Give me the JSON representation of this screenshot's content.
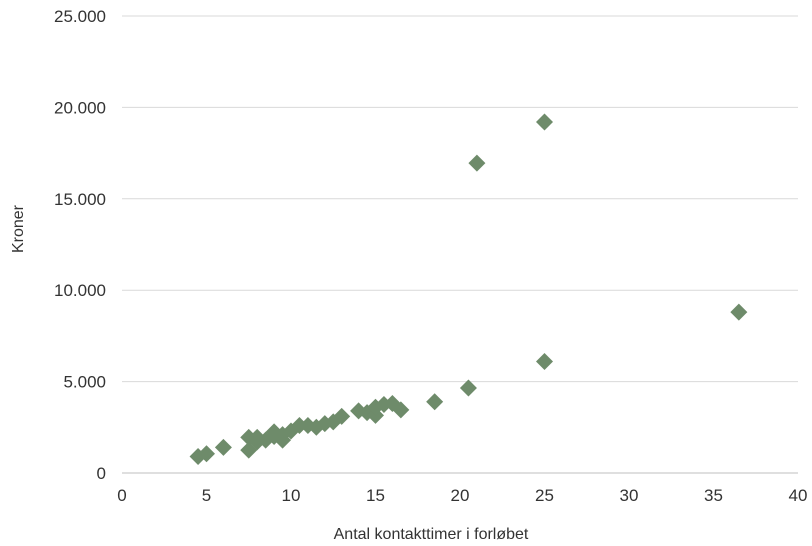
{
  "chart_data": {
    "type": "scatter",
    "xlabel": "Antal kontakttimer i forløbet",
    "ylabel": "Kroner",
    "xlim": [
      0,
      40
    ],
    "ylim": [
      0,
      25000
    ],
    "x_ticks": [
      {
        "value": 0,
        "label": "0"
      },
      {
        "value": 5,
        "label": "5"
      },
      {
        "value": 10,
        "label": "10"
      },
      {
        "value": 15,
        "label": "15"
      },
      {
        "value": 20,
        "label": "20"
      },
      {
        "value": 25,
        "label": "25"
      },
      {
        "value": 30,
        "label": "30"
      },
      {
        "value": 35,
        "label": "35"
      },
      {
        "value": 40,
        "label": "40"
      }
    ],
    "y_ticks": [
      {
        "value": 0,
        "label": "0"
      },
      {
        "value": 5000,
        "label": "5.000"
      },
      {
        "value": 10000,
        "label": "10.000"
      },
      {
        "value": 15000,
        "label": "15.000"
      },
      {
        "value": 20000,
        "label": "20.000"
      },
      {
        "value": 25000,
        "label": "25.000"
      }
    ],
    "grid": true,
    "legend": "none",
    "marker": "diamond",
    "color": "#6e8b6a",
    "points": [
      {
        "x": 4.5,
        "y": 900
      },
      {
        "x": 5.0,
        "y": 1050
      },
      {
        "x": 6.0,
        "y": 1400
      },
      {
        "x": 7.5,
        "y": 1250
      },
      {
        "x": 7.5,
        "y": 1950
      },
      {
        "x": 8.0,
        "y": 1700
      },
      {
        "x": 8.0,
        "y": 1950
      },
      {
        "x": 8.5,
        "y": 1800
      },
      {
        "x": 9.0,
        "y": 2000
      },
      {
        "x": 9.0,
        "y": 2250
      },
      {
        "x": 9.5,
        "y": 1800
      },
      {
        "x": 9.5,
        "y": 2100
      },
      {
        "x": 10.0,
        "y": 2300
      },
      {
        "x": 10.5,
        "y": 2600
      },
      {
        "x": 11.0,
        "y": 2600
      },
      {
        "x": 11.5,
        "y": 2500
      },
      {
        "x": 12.0,
        "y": 2700
      },
      {
        "x": 12.5,
        "y": 2800
      },
      {
        "x": 13.0,
        "y": 3100
      },
      {
        "x": 14.0,
        "y": 3400
      },
      {
        "x": 14.5,
        "y": 3300
      },
      {
        "x": 15.0,
        "y": 3150
      },
      {
        "x": 15.0,
        "y": 3600
      },
      {
        "x": 15.5,
        "y": 3750
      },
      {
        "x": 16.0,
        "y": 3800
      },
      {
        "x": 16.5,
        "y": 3450
      },
      {
        "x": 18.5,
        "y": 3900
      },
      {
        "x": 20.5,
        "y": 4650
      },
      {
        "x": 21.0,
        "y": 16950
      },
      {
        "x": 25.0,
        "y": 6100
      },
      {
        "x": 25.0,
        "y": 19200
      },
      {
        "x": 36.5,
        "y": 8800
      }
    ]
  }
}
